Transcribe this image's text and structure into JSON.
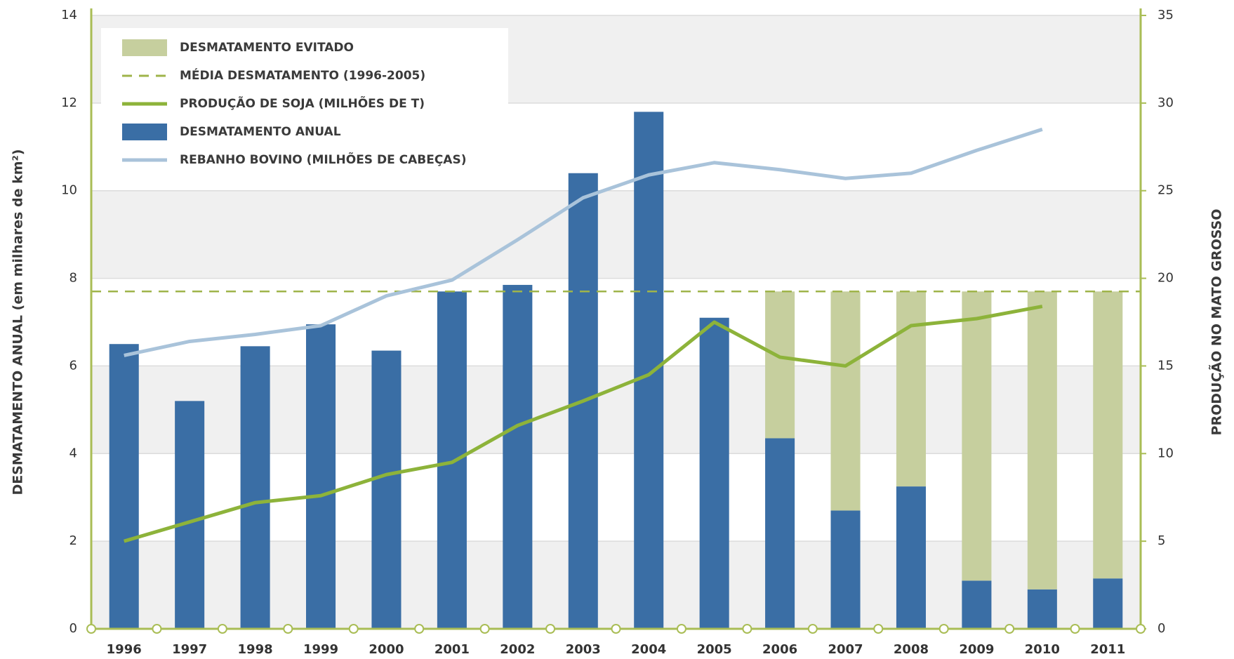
{
  "chart_data": {
    "type": "bar",
    "y_label": "DESMATAMENTO ANUAL (em milhares de km²)",
    "y2_label": "PRODUÇÃO NO MATO GROSSO",
    "categories": [
      "1996",
      "1997",
      "1998",
      "1999",
      "2000",
      "2001",
      "2002",
      "2003",
      "2004",
      "2005",
      "2006",
      "2007",
      "2008",
      "2009",
      "2010",
      "2011"
    ],
    "ylim": [
      0,
      14
    ],
    "yticks": [
      0,
      2,
      4,
      6,
      8,
      10,
      12,
      14
    ],
    "y2lim": [
      0,
      35
    ],
    "y2ticks": [
      0,
      5,
      10,
      15,
      20,
      25,
      30,
      35
    ],
    "legend": "upper left",
    "grid": true,
    "series": [
      {
        "name": "DESMATAMENTO EVITADO",
        "type": "stacked",
        "color": "#c6cf9e",
        "values": [
          null,
          null,
          null,
          null,
          null,
          null,
          null,
          null,
          null,
          null,
          3.35,
          5.0,
          4.45,
          6.6,
          6.8,
          6.55
        ]
      },
      {
        "name": "MÉDIA DESMATAMENTO (1996-2005)",
        "type": "hline",
        "color": "#9fb44a",
        "value": 7.7
      },
      {
        "name": "PRODUÇÃO DE SOJA (MILHÕES DE T)",
        "type": "line",
        "axis": "y2",
        "color": "#8db33a",
        "values": [
          5.0,
          6.1,
          7.2,
          7.6,
          8.8,
          9.5,
          11.6,
          13.0,
          14.5,
          17.5,
          15.5,
          15.0,
          17.3,
          17.7,
          18.4,
          null
        ]
      },
      {
        "name": "DESMATAMENTO ANUAL",
        "type": "bar",
        "color": "#3a6ea5",
        "values": [
          6.5,
          5.2,
          6.45,
          6.95,
          6.35,
          7.7,
          7.85,
          10.4,
          11.8,
          7.1,
          4.35,
          2.7,
          3.25,
          1.1,
          0.9,
          1.15
        ]
      },
      {
        "name": "REBANHO BOVINO (MILHÕES DE CABEÇAS)",
        "type": "line",
        "axis": "y2",
        "color": "#a9c3da",
        "values": [
          15.6,
          16.4,
          16.8,
          17.3,
          19.0,
          19.9,
          22.2,
          24.6,
          25.9,
          26.6,
          26.2,
          25.7,
          26.0,
          27.3,
          28.5,
          null
        ]
      }
    ]
  }
}
